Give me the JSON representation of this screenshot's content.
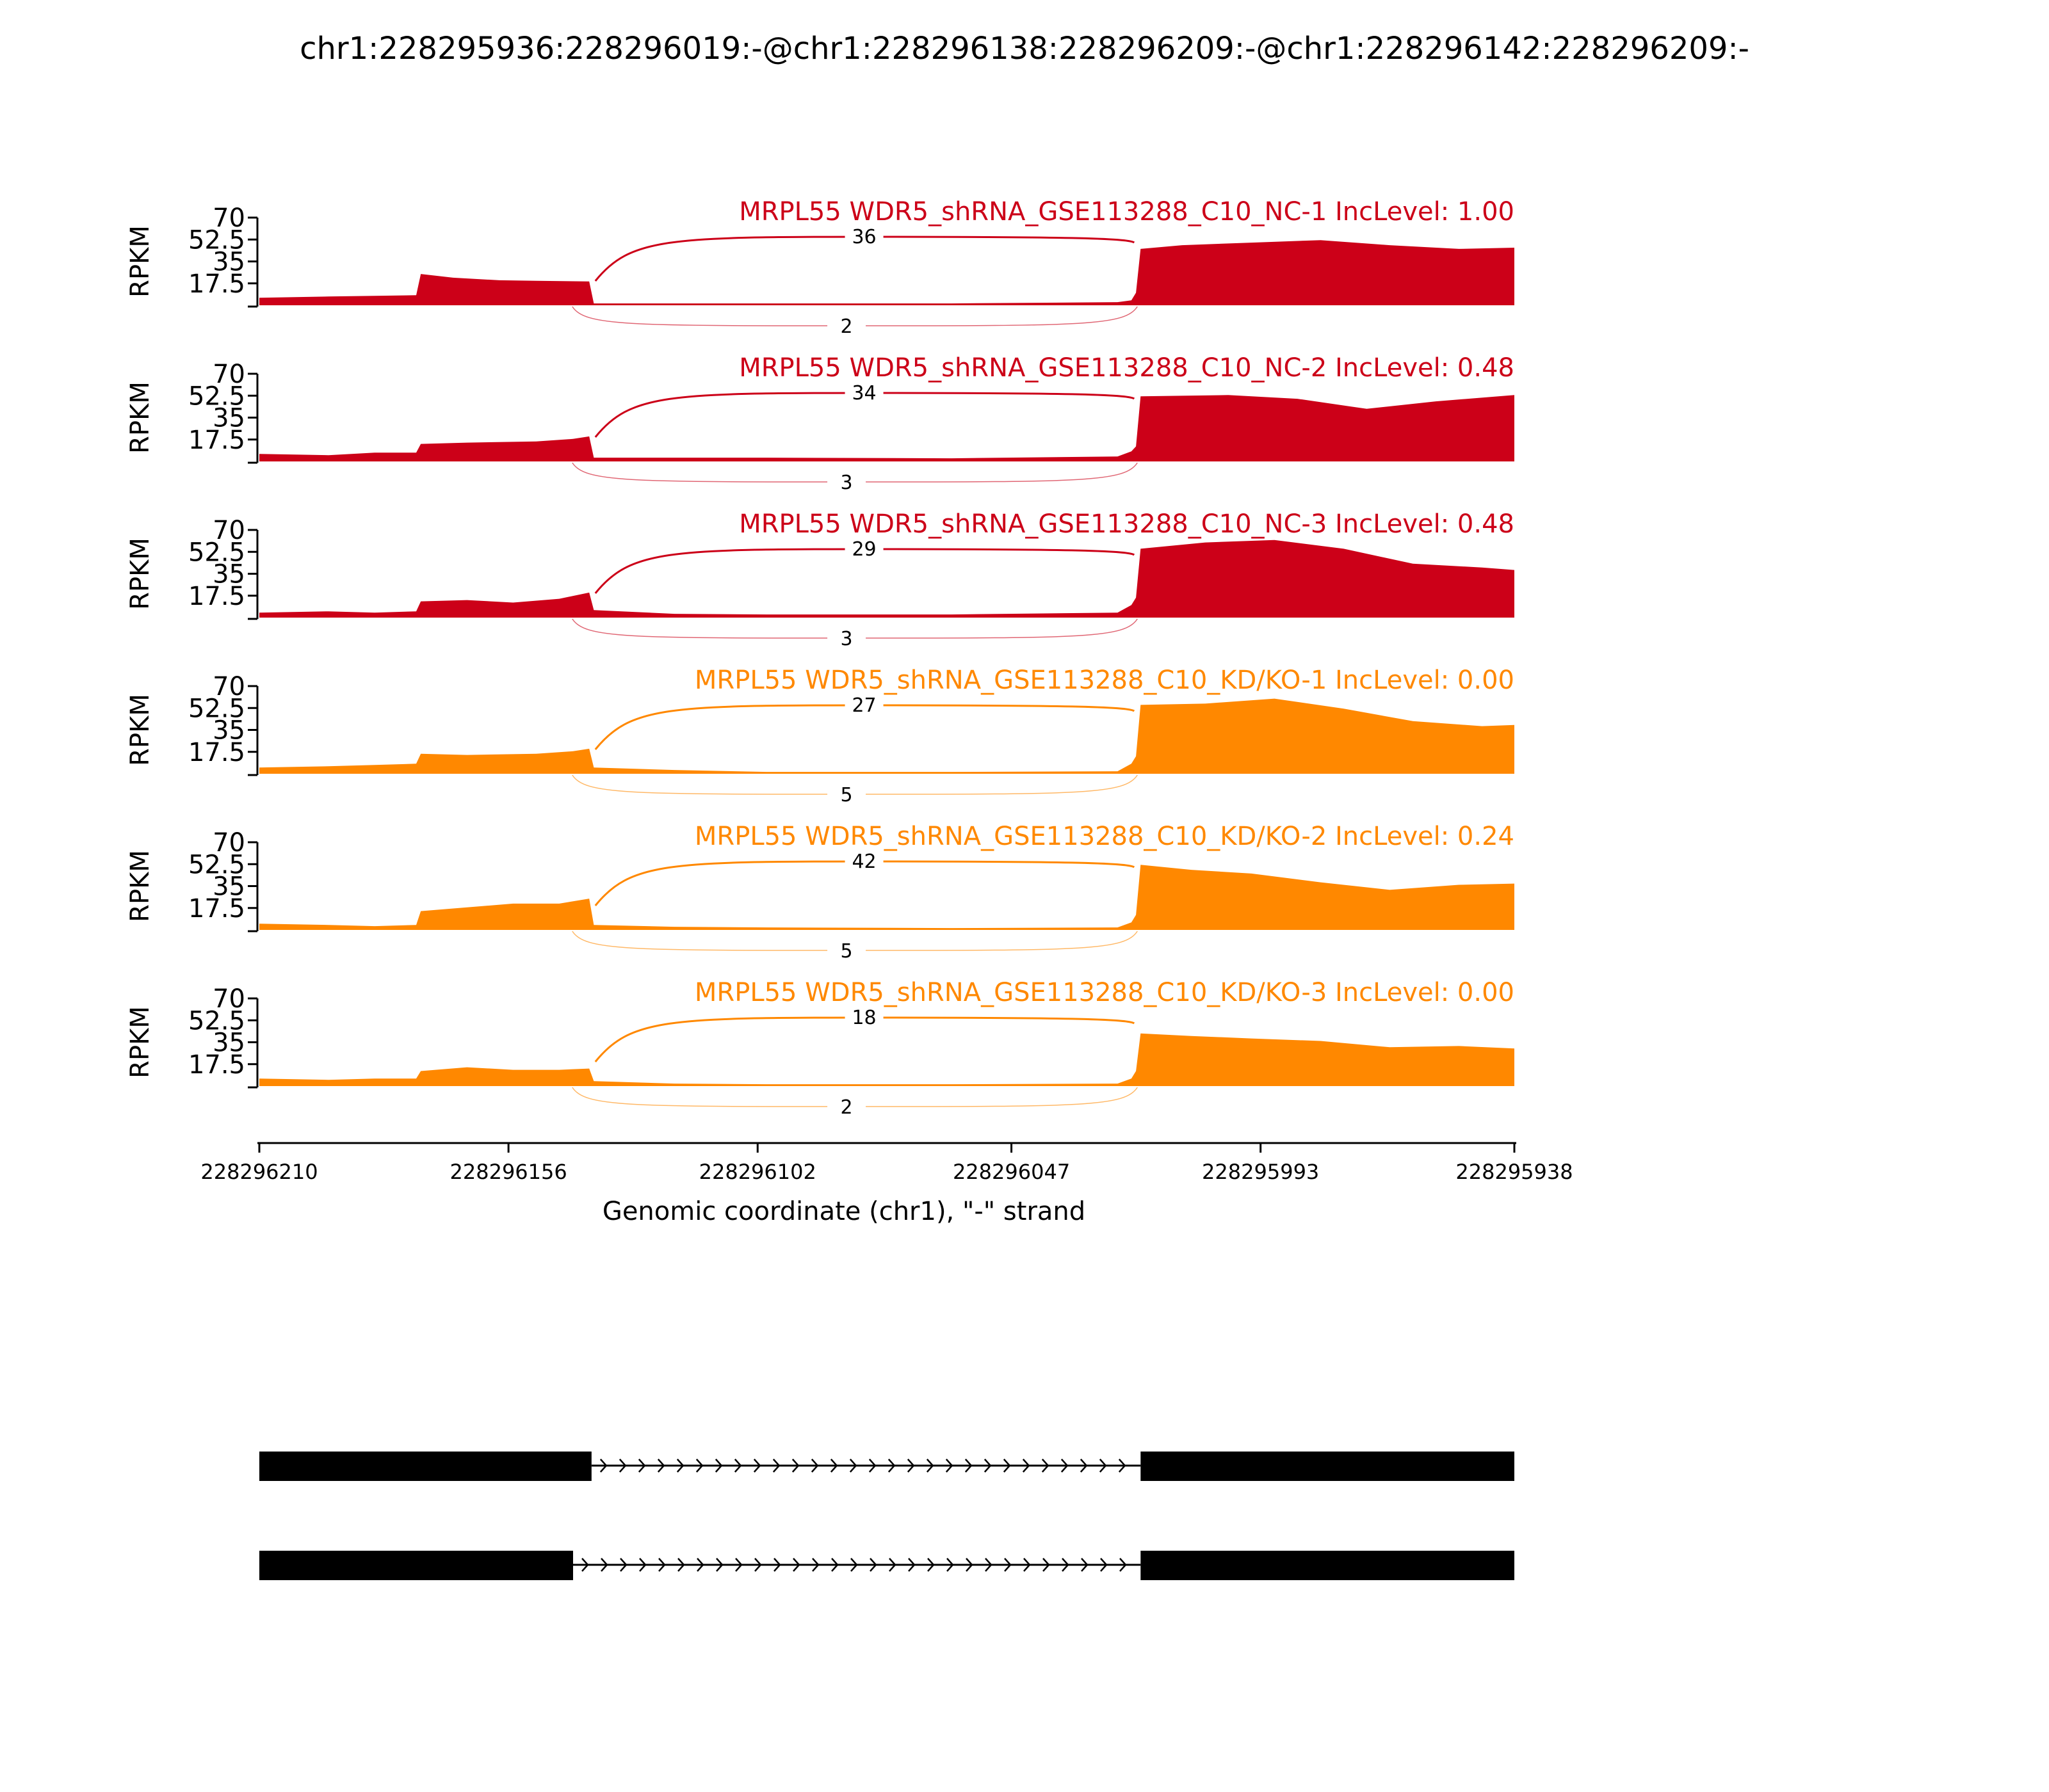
{
  "figure": {
    "title": "chr1:228295936:228296019:-@chr1:228296138:228296209:-@chr1:228296142:228296209:-",
    "xlabel": "Genomic coordinate (chr1), \"-\" strand",
    "ylabel": "RPKM"
  },
  "chart_data": {
    "type": "area",
    "title": "chr1:228295936:228296019:-@chr1:228296138:228296209:-@chr1:228296142:228296209:-",
    "xlabel": "Genomic coordinate (chr1), \"-\" strand",
    "ylabel": "RPKM",
    "xlim": [
      228296210,
      228295938
    ],
    "x_reversed": true,
    "x_ticks": [
      228296210,
      228296156,
      228296102,
      228296047,
      228295993,
      228295938
    ],
    "ylim": [
      0,
      70
    ],
    "y_ticks": [
      17.5,
      35,
      52.5,
      70
    ],
    "y_tick_labels": [
      "17.5",
      "35",
      "52.5",
      "70"
    ],
    "colors": {
      "control": "#cc0018",
      "knockdown": "#ff8800"
    },
    "exons": {
      "upstream_long": [
        228296210,
        228296138
      ],
      "upstream_short": [
        228296210,
        228296142
      ],
      "downstream": [
        228296019,
        228295938
      ]
    },
    "tracks": [
      {
        "label": "MRPL55 WDR5_shRNA_GSE113288_C10_NC-1 IncLevel: 1.00",
        "group": "control",
        "junction_above": "36",
        "junction_below": "2",
        "coverage": [
          [
            228296210,
            6
          ],
          [
            228296195,
            7
          ],
          [
            228296185,
            7.5
          ],
          [
            228296176,
            8
          ],
          [
            228296175,
            25
          ],
          [
            228296168,
            22
          ],
          [
            228296158,
            20
          ],
          [
            228296150,
            19.5
          ],
          [
            228296138.5,
            19
          ],
          [
            228296137.5,
            1.5
          ],
          [
            228296100,
            1.5
          ],
          [
            228296060,
            1.5
          ],
          [
            228296024,
            2.5
          ],
          [
            228296021,
            4
          ],
          [
            228296020,
            10
          ],
          [
            228296019,
            45
          ],
          [
            228296010,
            48
          ],
          [
            228295995,
            50
          ],
          [
            228295980,
            52
          ],
          [
            228295965,
            48
          ],
          [
            228295950,
            45
          ],
          [
            228295938,
            46
          ]
        ]
      },
      {
        "label": "MRPL55 WDR5_shRNA_GSE113288_C10_NC-2 IncLevel: 0.48",
        "group": "control",
        "junction_above": "34",
        "junction_below": "3",
        "coverage": [
          [
            228296210,
            6
          ],
          [
            228296195,
            5
          ],
          [
            228296185,
            7
          ],
          [
            228296176,
            7
          ],
          [
            228296175,
            14
          ],
          [
            228296165,
            15
          ],
          [
            228296150,
            16
          ],
          [
            228296142,
            18
          ],
          [
            228296138.5,
            20
          ],
          [
            228296137.5,
            3
          ],
          [
            228296100,
            3
          ],
          [
            228296060,
            2.5
          ],
          [
            228296024,
            4
          ],
          [
            228296021,
            8
          ],
          [
            228296020,
            12
          ],
          [
            228296019,
            52
          ],
          [
            228296000,
            53
          ],
          [
            228295985,
            50
          ],
          [
            228295970,
            42
          ],
          [
            228295955,
            48
          ],
          [
            228295938,
            53
          ]
        ]
      },
      {
        "label": "MRPL55 WDR5_shRNA_GSE113288_C10_NC-3 IncLevel: 0.48",
        "group": "control",
        "junction_above": "29",
        "junction_below": "3",
        "coverage": [
          [
            228296210,
            4
          ],
          [
            228296195,
            5
          ],
          [
            228296185,
            4
          ],
          [
            228296176,
            5
          ],
          [
            228296175,
            13
          ],
          [
            228296165,
            14
          ],
          [
            228296155,
            12
          ],
          [
            228296145,
            15
          ],
          [
            228296138.5,
            20
          ],
          [
            228296137.5,
            6
          ],
          [
            228296120,
            3
          ],
          [
            228296100,
            2.5
          ],
          [
            228296060,
            2.5
          ],
          [
            228296024,
            4
          ],
          [
            228296021,
            10
          ],
          [
            228296020,
            16
          ],
          [
            228296019,
            55
          ],
          [
            228296005,
            60
          ],
          [
            228295990,
            62
          ],
          [
            228295975,
            55
          ],
          [
            228295960,
            43
          ],
          [
            228295945,
            40
          ],
          [
            228295938,
            38
          ]
        ]
      },
      {
        "label": "MRPL55 WDR5_shRNA_GSE113288_C10_KD/KO-1 IncLevel: 0.00",
        "group": "knockdown",
        "junction_above": "27",
        "junction_below": "5",
        "coverage": [
          [
            228296210,
            5
          ],
          [
            228296195,
            6
          ],
          [
            228296185,
            7
          ],
          [
            228296176,
            8
          ],
          [
            228296175,
            16
          ],
          [
            228296165,
            15
          ],
          [
            228296150,
            16
          ],
          [
            228296142,
            18
          ],
          [
            228296138.5,
            20
          ],
          [
            228296137.5,
            5
          ],
          [
            228296120,
            3
          ],
          [
            228296100,
            1.5
          ],
          [
            228296060,
            1.5
          ],
          [
            228296024,
            2
          ],
          [
            228296021,
            8
          ],
          [
            228296020,
            14
          ],
          [
            228296019,
            55
          ],
          [
            228296005,
            56
          ],
          [
            228295990,
            60
          ],
          [
            228295975,
            52
          ],
          [
            228295960,
            42
          ],
          [
            228295945,
            38
          ],
          [
            228295938,
            39
          ]
        ]
      },
      {
        "label": "MRPL55 WDR5_shRNA_GSE113288_C10_KD/KO-2 IncLevel: 0.24",
        "group": "knockdown",
        "junction_above": "42",
        "junction_below": "5",
        "coverage": [
          [
            228296210,
            5
          ],
          [
            228296195,
            4
          ],
          [
            228296185,
            3
          ],
          [
            228296176,
            4
          ],
          [
            228296175,
            15
          ],
          [
            228296165,
            18
          ],
          [
            228296155,
            21
          ],
          [
            228296145,
            21
          ],
          [
            228296138.5,
            25
          ],
          [
            228296137.5,
            4
          ],
          [
            228296120,
            2.5
          ],
          [
            228296100,
            2
          ],
          [
            228296060,
            1.5
          ],
          [
            228296024,
            2
          ],
          [
            228296021,
            6
          ],
          [
            228296020,
            12
          ],
          [
            228296019,
            52
          ],
          [
            228296008,
            48
          ],
          [
            228295995,
            45
          ],
          [
            228295980,
            38
          ],
          [
            228295965,
            32
          ],
          [
            228295950,
            36
          ],
          [
            228295938,
            37
          ]
        ]
      },
      {
        "label": "MRPL55 WDR5_shRNA_GSE113288_C10_KD/KO-3 IncLevel: 0.00",
        "group": "knockdown",
        "junction_above": "18",
        "junction_below": "2",
        "coverage": [
          [
            228296210,
            6
          ],
          [
            228296195,
            5
          ],
          [
            228296185,
            6
          ],
          [
            228296176,
            6
          ],
          [
            228296175,
            12
          ],
          [
            228296165,
            15
          ],
          [
            228296155,
            13
          ],
          [
            228296145,
            13
          ],
          [
            228296138.5,
            14
          ],
          [
            228296137.5,
            4
          ],
          [
            228296120,
            2
          ],
          [
            228296100,
            1.5
          ],
          [
            228296060,
            1.5
          ],
          [
            228296024,
            2
          ],
          [
            228296021,
            6
          ],
          [
            228296020,
            12
          ],
          [
            228296019,
            42
          ],
          [
            228296008,
            40
          ],
          [
            228295995,
            38
          ],
          [
            228295980,
            36
          ],
          [
            228295965,
            31
          ],
          [
            228295950,
            32
          ],
          [
            228295938,
            30
          ]
        ]
      }
    ]
  }
}
